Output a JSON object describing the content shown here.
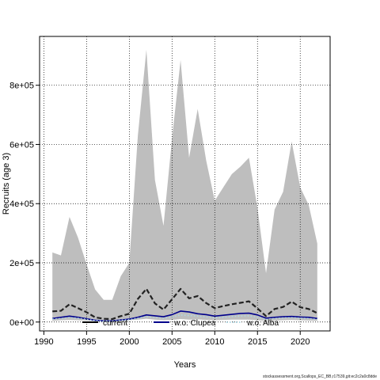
{
  "chart_data": {
    "type": "area",
    "xlabel": "Years",
    "ylabel": "Recruits (age 3)",
    "xlim": [
      1989.5,
      2023.5
    ],
    "ylim": [
      -30000,
      965000
    ],
    "xticks": [
      1990,
      1995,
      2000,
      2005,
      2010,
      2015,
      2020
    ],
    "xtick_labels": [
      "1990",
      "1995",
      "2000",
      "2005",
      "2010",
      "2015",
      "2020"
    ],
    "yticks": [
      0,
      200000,
      400000,
      600000,
      800000
    ],
    "ytick_labels": [
      "0e+00",
      "2e+05",
      "4e+05",
      "6e+05",
      "8e+05"
    ],
    "grid": true,
    "legend_position": "bottom",
    "x": [
      1991,
      1992,
      1993,
      1994,
      1995,
      1996,
      1997,
      1998,
      1999,
      2000,
      2001,
      2002,
      2003,
      2004,
      2005,
      2006,
      2007,
      2008,
      2009,
      2010,
      2011,
      2012,
      2013,
      2014,
      2015,
      2016,
      2017,
      2018,
      2019,
      2020,
      2021,
      2022
    ],
    "band": {
      "color": "#bebebe",
      "upper": [
        235000,
        225000,
        355000,
        285000,
        195000,
        110000,
        75000,
        75000,
        155000,
        200000,
        630000,
        920000,
        480000,
        325000,
        620000,
        885000,
        555000,
        720000,
        545000,
        410000,
        455000,
        500000,
        525000,
        555000,
        385000,
        165000,
        380000,
        440000,
        610000,
        455000,
        395000,
        265000
      ],
      "lower": [
        4000,
        6000,
        7000,
        6000,
        5000,
        4000,
        3000,
        3000,
        4000,
        6000,
        8000,
        11000,
        8000,
        6000,
        7000,
        10000,
        8000,
        9000,
        7000,
        6000,
        7000,
        8000,
        8000,
        8000,
        6000,
        4000,
        5000,
        6000,
        7000,
        6000,
        5000,
        4000
      ]
    },
    "series": [
      {
        "name": "current",
        "color": "#222222",
        "style": "dashed",
        "values": [
          36000,
          38000,
          60000,
          47000,
          33000,
          16000,
          11000,
          10000,
          20000,
          28000,
          78000,
          112000,
          63000,
          42000,
          77000,
          112000,
          80000,
          88000,
          64000,
          47000,
          54000,
          60000,
          65000,
          70000,
          46000,
          20000,
          44000,
          51000,
          69000,
          50000,
          44000,
          30000
        ]
      },
      {
        "name": "w.o. Clupea",
        "color": "#00008b",
        "style": "solid",
        "values": [
          12000,
          16000,
          20000,
          16000,
          11000,
          6000,
          4000,
          4000,
          7000,
          10000,
          16000,
          24000,
          21000,
          18000,
          25000,
          37000,
          34000,
          28000,
          25000,
          20000,
          23000,
          26000,
          29000,
          30000,
          24000,
          13000,
          16000,
          18000,
          19000,
          17000,
          16000,
          12000
        ]
      },
      {
        "name": "w.o. Alba",
        "color": "#add8e6",
        "style": "dotted",
        "values": [
          10000,
          12000,
          15000,
          13000,
          9000,
          5000,
          3000,
          3000,
          6000,
          8000,
          13000,
          18000,
          15000,
          13000,
          17000,
          24000,
          22000,
          20000,
          17000,
          14000,
          16000,
          19000,
          20000,
          21000,
          16000,
          9000,
          12000,
          14000,
          15000,
          13000,
          12000,
          9000
        ]
      }
    ],
    "legend": [
      {
        "label": "current",
        "color": "#000000",
        "style": "solid"
      },
      {
        "label": "w.o. Clupea",
        "color": "#00008b",
        "style": "solid"
      },
      {
        "label": "w.o. Alba",
        "color": "#add8e6",
        "style": "dotted"
      }
    ]
  },
  "footer_text": "stockassessment.org,Scallops_EC_BB,r17539,git:ec2c2a0c8dde"
}
